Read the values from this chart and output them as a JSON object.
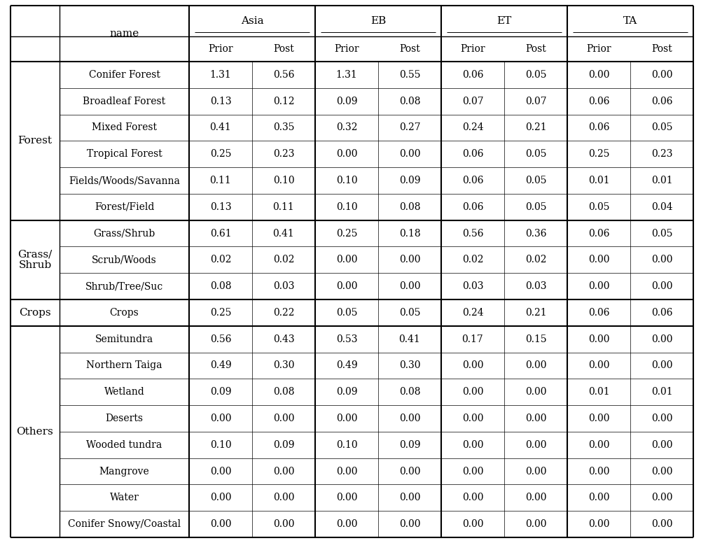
{
  "col_groups": [
    "Asia",
    "EB",
    "ET",
    "TA"
  ],
  "col_subheaders": [
    "Prior",
    "Post",
    "Prior",
    "Post",
    "Prior",
    "Post",
    "Prior",
    "Post"
  ],
  "row_groups": [
    {
      "name": "Forest",
      "rows": [
        "Conifer Forest",
        "Broadleaf Forest",
        "Mixed Forest",
        "Tropical Forest",
        "Fields/Woods/Savanna",
        "Forest/Field"
      ]
    },
    {
      "name": "Grass/\nShrub",
      "rows": [
        "Grass/Shrub",
        "Scrub/Woods",
        "Shrub/Tree/Suc"
      ]
    },
    {
      "name": "Crops",
      "rows": [
        "Crops"
      ]
    },
    {
      "name": "Others",
      "rows": [
        "Semitundra",
        "Northern Taiga",
        "Wetland",
        "Deserts",
        "Wooded tundra",
        "Mangrove",
        "Water",
        "Conifer Snowy/Coastal"
      ]
    }
  ],
  "data": {
    "Conifer Forest": [
      1.31,
      0.56,
      1.31,
      0.55,
      0.06,
      0.05,
      0.0,
      0.0
    ],
    "Broadleaf Forest": [
      0.13,
      0.12,
      0.09,
      0.08,
      0.07,
      0.07,
      0.06,
      0.06
    ],
    "Mixed Forest": [
      0.41,
      0.35,
      0.32,
      0.27,
      0.24,
      0.21,
      0.06,
      0.05
    ],
    "Tropical Forest": [
      0.25,
      0.23,
      0.0,
      0.0,
      0.06,
      0.05,
      0.25,
      0.23
    ],
    "Fields/Woods/Savanna": [
      0.11,
      0.1,
      0.1,
      0.09,
      0.06,
      0.05,
      0.01,
      0.01
    ],
    "Forest/Field": [
      0.13,
      0.11,
      0.1,
      0.08,
      0.06,
      0.05,
      0.05,
      0.04
    ],
    "Grass/Shrub": [
      0.61,
      0.41,
      0.25,
      0.18,
      0.56,
      0.36,
      0.06,
      0.05
    ],
    "Scrub/Woods": [
      0.02,
      0.02,
      0.0,
      0.0,
      0.02,
      0.02,
      0.0,
      0.0
    ],
    "Shrub/Tree/Suc": [
      0.08,
      0.03,
      0.0,
      0.0,
      0.03,
      0.03,
      0.0,
      0.0
    ],
    "Crops": [
      0.25,
      0.22,
      0.05,
      0.05,
      0.24,
      0.21,
      0.06,
      0.06
    ],
    "Semitundra": [
      0.56,
      0.43,
      0.53,
      0.41,
      0.17,
      0.15,
      0.0,
      0.0
    ],
    "Northern Taiga": [
      0.49,
      0.3,
      0.49,
      0.3,
      0.0,
      0.0,
      0.0,
      0.0
    ],
    "Wetland": [
      0.09,
      0.08,
      0.09,
      0.08,
      0.0,
      0.0,
      0.01,
      0.01
    ],
    "Deserts": [
      0.0,
      0.0,
      0.0,
      0.0,
      0.0,
      0.0,
      0.0,
      0.0
    ],
    "Wooded tundra": [
      0.1,
      0.09,
      0.1,
      0.09,
      0.0,
      0.0,
      0.0,
      0.0
    ],
    "Mangrove": [
      0.0,
      0.0,
      0.0,
      0.0,
      0.0,
      0.0,
      0.0,
      0.0
    ],
    "Water": [
      0.0,
      0.0,
      0.0,
      0.0,
      0.0,
      0.0,
      0.0,
      0.0
    ],
    "Conifer Snowy/Coastal": [
      0.0,
      0.0,
      0.0,
      0.0,
      0.0,
      0.0,
      0.0,
      0.0
    ]
  },
  "bg_color": "#ffffff",
  "header_fontsize": 11,
  "cell_fontsize": 10,
  "group_fontsize": 11,
  "thick_lw": 1.5,
  "thin_lw": 0.5,
  "medium_lw": 1.0
}
